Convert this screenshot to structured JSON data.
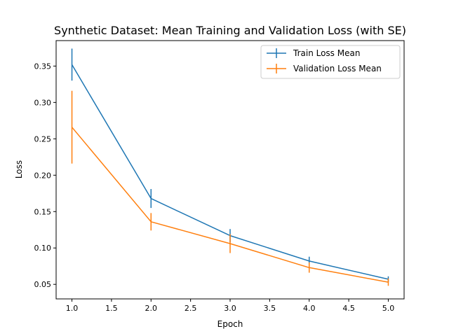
{
  "chart_data": {
    "type": "line",
    "title": "Synthetic Dataset: Mean Training and Validation Loss (with SE)",
    "xlabel": "Epoch",
    "ylabel": "Loss",
    "xlim": [
      0.8,
      5.2
    ],
    "ylim": [
      0.03,
      0.385
    ],
    "xticks": [
      "1.0",
      "1.5",
      "2.0",
      "2.5",
      "3.0",
      "3.5",
      "4.0",
      "4.5",
      "5.0"
    ],
    "yticks": [
      "0.05",
      "0.10",
      "0.15",
      "0.20",
      "0.25",
      "0.30",
      "0.35"
    ],
    "grid": false,
    "legend_position": "top-right",
    "x": [
      1,
      2,
      3,
      4,
      5
    ],
    "series": [
      {
        "name": "Train Loss Mean",
        "color": "#1f77b4",
        "values": [
          0.352,
          0.168,
          0.117,
          0.082,
          0.057
        ],
        "se": [
          0.022,
          0.013,
          0.009,
          0.006,
          0.004
        ]
      },
      {
        "name": "Validation Loss Mean",
        "color": "#ff7f0e",
        "values": [
          0.266,
          0.136,
          0.106,
          0.073,
          0.053
        ],
        "se": [
          0.05,
          0.012,
          0.013,
          0.007,
          0.005
        ]
      }
    ]
  }
}
